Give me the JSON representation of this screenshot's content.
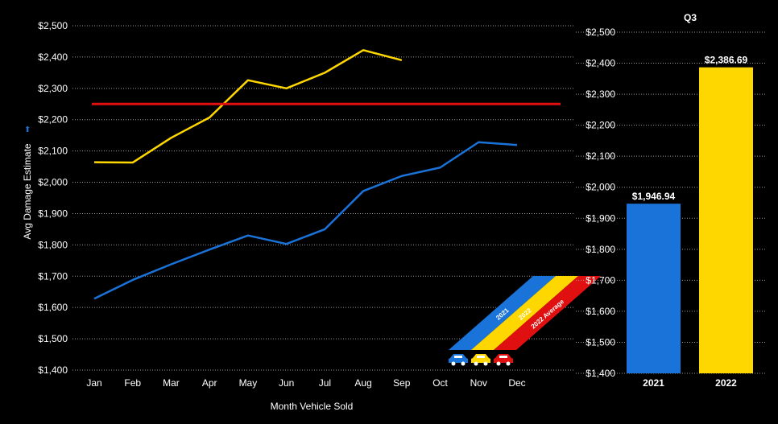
{
  "colors": {
    "background": "#000000",
    "year_2021": "#1a73d9",
    "year_2022": "#ffd700",
    "avg_2022": "#e01010",
    "grid": "#9a9a9a"
  },
  "chart_data": [
    {
      "type": "line",
      "xlabel": "Month Vehicle Sold",
      "ylabel": "Avg Damage Estimate",
      "categories": [
        "Jan",
        "Feb",
        "Mar",
        "Apr",
        "May",
        "Jun",
        "Jul",
        "Aug",
        "Sep",
        "Oct",
        "Nov",
        "Dec"
      ],
      "ylim": [
        1400,
        2500
      ],
      "yticks": [
        "$2,500",
        "$2,400",
        "$2,300",
        "$2,200",
        "$2,100",
        "$2,000",
        "$1,900",
        "$1,800",
        "$1,700",
        "$1,600",
        "$1,500",
        "$1,400"
      ],
      "ytick_values": [
        2500,
        2400,
        2300,
        2200,
        2100,
        2000,
        1900,
        1800,
        1700,
        1600,
        1500,
        1400
      ],
      "grid": true,
      "series": [
        {
          "name": "2021",
          "color": "#1a73d9",
          "values": [
            1628,
            1688,
            1738,
            1785,
            1830,
            1803,
            1850,
            1972,
            2020,
            2047,
            2128,
            2119
          ]
        },
        {
          "name": "2022",
          "color": "#ffd700",
          "values": [
            2064,
            2063,
            2142,
            2207,
            2326,
            2300,
            2350,
            2422,
            2390,
            null,
            null,
            null
          ]
        },
        {
          "name": "2022 Average",
          "color": "#e01010",
          "values": [
            2250,
            2250,
            2250,
            2250,
            2250,
            2250,
            2250,
            2250,
            2250,
            2250,
            2250,
            2250
          ]
        }
      ],
      "legend": {
        "placement": "bottom-right",
        "entries": [
          "2021",
          "2022",
          "2022 Average"
        ],
        "icon": "car-icon"
      }
    },
    {
      "type": "bar",
      "title": "Q3",
      "categories": [
        "2021",
        "2022"
      ],
      "values": [
        1946.94,
        2386.69
      ],
      "data_labels": [
        "$1,946.94",
        "$2,386.69"
      ],
      "colors": [
        "#1a73d9",
        "#ffd700"
      ],
      "ylim": [
        1400,
        2500
      ],
      "yticks": [
        "$2,500",
        "$2,400",
        "$2,300",
        "$2,200",
        "$2,100",
        "$2,000",
        "$1,900",
        "$1,800",
        "$1,700",
        "$1,600",
        "$1,500",
        "$1,400"
      ],
      "ytick_values": [
        2500,
        2400,
        2300,
        2200,
        2100,
        2000,
        1900,
        1800,
        1700,
        1600,
        1500,
        1400
      ],
      "grid": true
    }
  ]
}
